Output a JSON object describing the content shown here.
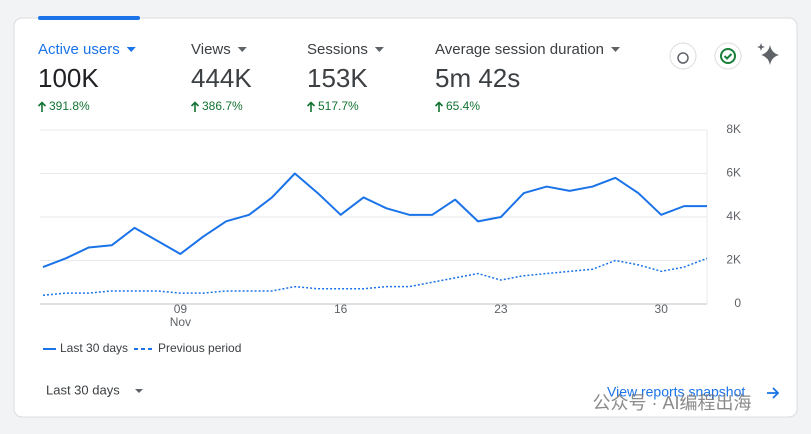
{
  "metrics": [
    {
      "label": "Active users",
      "value": "100K",
      "change": "391.8%"
    },
    {
      "label": "Views",
      "value": "444K",
      "change": "386.7%"
    },
    {
      "label": "Sessions",
      "value": "153K",
      "change": "517.7%"
    },
    {
      "label": "Average session duration",
      "value": "5m 42s",
      "change": "65.4%"
    }
  ],
  "chart_data": {
    "type": "line",
    "categories": [
      null,
      null,
      null,
      null,
      null,
      null,
      "09",
      null,
      null,
      null,
      null,
      null,
      null,
      "16",
      null,
      null,
      null,
      null,
      null,
      null,
      "23",
      null,
      null,
      null,
      null,
      null,
      null,
      "30",
      null,
      null
    ],
    "month_label": "Nov",
    "series": [
      {
        "name": "Last 30 days",
        "color": "#1a73e8",
        "style": "solid",
        "values": [
          1700,
          2100,
          2600,
          2700,
          3500,
          2900,
          2300,
          3100,
          3800,
          4100,
          4900,
          6000,
          5100,
          4100,
          4900,
          4400,
          4100,
          4100,
          4800,
          3800,
          4000,
          5100,
          5400,
          5200,
          5400,
          5800,
          5100,
          4100,
          4500,
          4500
        ]
      },
      {
        "name": "Previous period",
        "color": "#1a73e8",
        "style": "dashed",
        "values": [
          400,
          500,
          500,
          600,
          600,
          600,
          500,
          500,
          600,
          600,
          600,
          800,
          700,
          700,
          700,
          800,
          800,
          1000,
          1200,
          1400,
          1100,
          1300,
          1400,
          1500,
          1600,
          2000,
          1800,
          1500,
          1700,
          2100
        ]
      }
    ],
    "ylim": [
      0,
      8000
    ],
    "yticks": [
      {
        "value": 0,
        "label": "0"
      },
      {
        "value": 2000,
        "label": "2K"
      },
      {
        "value": 4000,
        "label": "4K"
      },
      {
        "value": 6000,
        "label": "6K"
      },
      {
        "value": 8000,
        "label": "8K"
      }
    ],
    "grid": true
  },
  "date_range": "Last 30 days",
  "link": "View reports snapshot",
  "watermark": "公众号 · AI编程出海"
}
